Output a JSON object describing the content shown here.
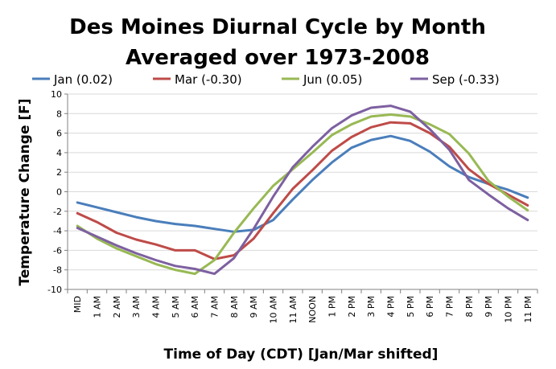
{
  "chart_data": {
    "type": "line",
    "title": [
      "Des Moines Diurnal Cycle by Month",
      "Averaged over 1973-2008"
    ],
    "xlabel": "Time of Day (CDT) [Jan/Mar shifted]",
    "ylabel": "Temperature Change [F]",
    "ylim": [
      -10,
      10
    ],
    "yticks": [
      -10,
      -8,
      -6,
      -4,
      -2,
      0,
      2,
      4,
      6,
      8,
      10
    ],
    "grid": true,
    "legend_position": "top",
    "categories": [
      "MID",
      "1 AM",
      "2 AM",
      "3 AM",
      "4 AM",
      "5 AM",
      "6 AM",
      "7 AM",
      "8 AM",
      "9 AM",
      "10 AM",
      "11 AM",
      "NOON",
      "1 PM",
      "2 PM",
      "3 PM",
      "4 PM",
      "5 PM",
      "6 PM",
      "7 PM",
      "8 PM",
      "9 PM",
      "10 PM",
      "11 PM"
    ],
    "series": [
      {
        "name": "Jan (0.02)",
        "color": "#4a7ebb",
        "values": [
          -1.1,
          -1.6,
          -2.1,
          -2.6,
          -3.0,
          -3.3,
          -3.5,
          -3.8,
          -4.1,
          -3.9,
          -2.9,
          -0.8,
          1.2,
          3.0,
          4.5,
          5.3,
          5.7,
          5.2,
          4.1,
          2.6,
          1.5,
          0.8,
          0.2,
          -0.6
        ]
      },
      {
        "name": "Mar (-0.30)",
        "color": "#be4b48",
        "values": [
          -2.2,
          -3.1,
          -4.2,
          -4.9,
          -5.4,
          -6.0,
          -6.0,
          -6.9,
          -6.5,
          -4.8,
          -2.2,
          0.3,
          2.2,
          4.2,
          5.6,
          6.6,
          7.1,
          7.0,
          6.0,
          4.6,
          2.3,
          0.8,
          -0.3,
          -1.4
        ]
      },
      {
        "name": "Jun (0.05)",
        "color": "#98b954",
        "values": [
          -3.5,
          -4.8,
          -5.8,
          -6.6,
          -7.4,
          -8.0,
          -8.4,
          -7.0,
          -4.2,
          -1.7,
          0.6,
          2.3,
          4.0,
          5.8,
          6.9,
          7.7,
          7.9,
          7.7,
          6.9,
          5.9,
          3.9,
          1.1,
          -0.5,
          -1.9
        ]
      },
      {
        "name": "Sep (-0.33)",
        "color": "#7d60a0",
        "values": [
          -3.7,
          -4.6,
          -5.5,
          -6.3,
          -7.0,
          -7.6,
          -7.9,
          -8.4,
          -6.8,
          -3.8,
          -0.5,
          2.5,
          4.6,
          6.5,
          7.8,
          8.6,
          8.8,
          8.2,
          6.4,
          4.3,
          1.2,
          -0.3,
          -1.7,
          -2.9
        ]
      }
    ]
  }
}
